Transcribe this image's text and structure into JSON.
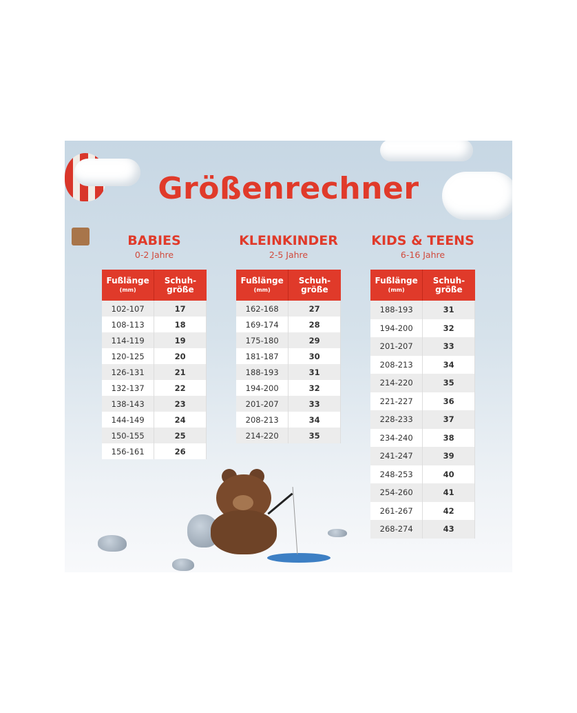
{
  "title": "Größenrechner",
  "header": {
    "col1": "Fußlänge",
    "col1_unit": "(mm)",
    "col2": "Schuh-größe"
  },
  "colors": {
    "accent": "#e03a2a"
  },
  "sections": [
    {
      "name": "BABIES",
      "age": "0-2 Jahre",
      "rows": [
        [
          "102-107",
          "17"
        ],
        [
          "108-113",
          "18"
        ],
        [
          "114-119",
          "19"
        ],
        [
          "120-125",
          "20"
        ],
        [
          "126-131",
          "21"
        ],
        [
          "132-137",
          "22"
        ],
        [
          "138-143",
          "23"
        ],
        [
          "144-149",
          "24"
        ],
        [
          "150-155",
          "25"
        ],
        [
          "156-161",
          "26"
        ]
      ]
    },
    {
      "name": "KLEINKINDER",
      "age": "2-5 Jahre",
      "rows": [
        [
          "162-168",
          "27"
        ],
        [
          "169-174",
          "28"
        ],
        [
          "175-180",
          "29"
        ],
        [
          "181-187",
          "30"
        ],
        [
          "188-193",
          "31"
        ],
        [
          "194-200",
          "32"
        ],
        [
          "201-207",
          "33"
        ],
        [
          "208-213",
          "34"
        ],
        [
          "214-220",
          "35"
        ]
      ]
    },
    {
      "name": "KIDS & TEENS",
      "age": "6-16 Jahre",
      "rows": [
        [
          "188-193",
          "31"
        ],
        [
          "194-200",
          "32"
        ],
        [
          "201-207",
          "33"
        ],
        [
          "208-213",
          "34"
        ],
        [
          "214-220",
          "35"
        ],
        [
          "221-227",
          "36"
        ],
        [
          "228-233",
          "37"
        ],
        [
          "234-240",
          "38"
        ],
        [
          "241-247",
          "39"
        ],
        [
          "248-253",
          "40"
        ],
        [
          "254-260",
          "41"
        ],
        [
          "261-267",
          "42"
        ],
        [
          "268-274",
          "43"
        ]
      ]
    }
  ]
}
